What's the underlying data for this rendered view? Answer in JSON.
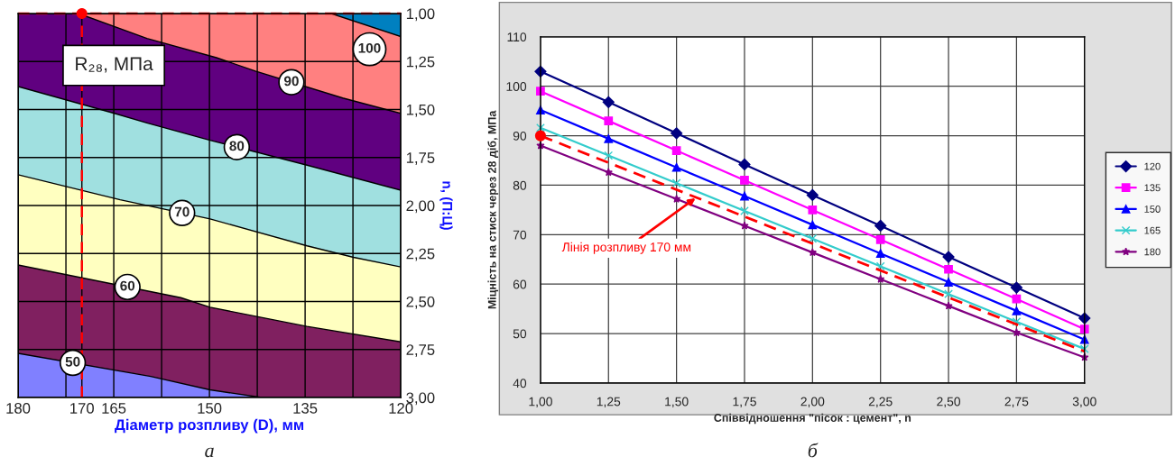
{
  "chart_data": [
    {
      "type": "area",
      "xlabel": "Діаметр розпливу (D), мм",
      "ylabel": "n, (П:Ц)",
      "subtitle": "а",
      "xlim": [
        180,
        120
      ],
      "ylim": [
        3.0,
        1.0
      ],
      "xticks": [
        180,
        {
          "value": 172.5,
          "label": null
        },
        {
          "value": 170,
          "label": "170"
        },
        165,
        {
          "value": 157.5,
          "label": null
        },
        150,
        {
          "value": 142.5,
          "label": null
        },
        135,
        {
          "value": 127.5,
          "label": null
        },
        120
      ],
      "yticks": [
        {
          "value": 1.0,
          "label": "1,00"
        },
        {
          "value": 1.25,
          "label": "1,25"
        },
        {
          "value": 1.5,
          "label": "1,50"
        },
        {
          "value": 1.75,
          "label": "1,75"
        },
        {
          "value": 2.0,
          "label": "2,00"
        },
        {
          "value": 2.25,
          "label": "2,25"
        },
        {
          "value": 2.5,
          "label": "2,50"
        },
        {
          "value": 2.75,
          "label": "2,75"
        },
        {
          "value": 3.0,
          "label": "3,00"
        }
      ],
      "grid": true,
      "annotations": [
        "R₂₈, МПа"
      ],
      "ref_lines": [
        {
          "axis": "x",
          "value": 170,
          "color": "#ff0000",
          "line_style": "dashed"
        },
        {
          "axis": "y",
          "value": 1.0,
          "color": "#ff0000",
          "line_style": "dashed"
        }
      ],
      "series": [
        {
          "color": "#8080ff",
          "x": [
            180,
            141.8
          ],
          "values": [
            3.0,
            3.0
          ]
        },
        {
          "name": "50",
          "color": "#802060",
          "x": [
            180,
            159.2,
            149.9,
            141.8,
            120
          ],
          "values": [
            2.77,
            2.89,
            2.96,
            3.0,
            3.0
          ]
        },
        {
          "name": "60",
          "color": "#ffffc0",
          "x": [
            180,
            154.5,
            149.9,
            134.7,
            120
          ],
          "values": [
            2.31,
            2.48,
            2.53,
            2.63,
            2.71
          ]
        },
        {
          "name": "70",
          "color": "#a0e0e0",
          "x": [
            180,
            164,
            149.9,
            134.7,
            127.4,
            120
          ],
          "values": [
            1.84,
            1.97,
            2.07,
            2.21,
            2.27,
            2.32
          ]
        },
        {
          "name": "80",
          "color": "#600080",
          "x": [
            180,
            164.9,
            159.8,
            149.9,
            134.7,
            120
          ],
          "values": [
            1.38,
            1.52,
            1.57,
            1.66,
            1.79,
            1.92
          ]
        },
        {
          "name": "90",
          "color": "#ff8080",
          "x": [
            170.5,
            159.8,
            148.9,
            142.8,
            129.1,
            120
          ],
          "values": [
            1.0,
            1.13,
            1.23,
            1.3,
            1.44,
            1.52
          ]
        },
        {
          "name": "100",
          "color": "#0080c0",
          "x": [
            130.9,
            120
          ],
          "values": [
            1.0,
            1.12
          ]
        },
        {
          "type": "scatter",
          "color": "#ff0000",
          "x": [
            170
          ],
          "values": [
            1.0
          ],
          "marker": "circle"
        }
      ]
    },
    {
      "type": "line",
      "xlabel": "Співвідношення \"пісок : цемент\", n",
      "ylabel": "Міцність на стиск через 28 діб, МПа",
      "subtitle": "б",
      "x": [
        1.0,
        1.25,
        1.5,
        1.75,
        2.0,
        2.25,
        2.5,
        2.75,
        3.0
      ],
      "xlim": [
        1.0,
        3.0
      ],
      "ylim": [
        40,
        110
      ],
      "xticks": [
        {
          "value": 1.0,
          "label": "1,00"
        },
        {
          "value": 1.25,
          "label": "1,25"
        },
        {
          "value": 1.5,
          "label": "1,50"
        },
        {
          "value": 1.75,
          "label": "1,75"
        },
        {
          "value": 2.0,
          "label": "2,00"
        },
        {
          "value": 2.25,
          "label": "2,25"
        },
        {
          "value": 2.5,
          "label": "2,50"
        },
        {
          "value": 2.75,
          "label": "2,75"
        },
        {
          "value": 3.0,
          "label": "3,00"
        }
      ],
      "yticks": [
        40,
        50,
        60,
        70,
        80,
        90,
        100,
        110
      ],
      "grid": true,
      "legend": "right",
      "annotations": [
        {
          "text": "Лінія розпливу 170 мм",
          "x": 1.57,
          "y": 77.4
        }
      ],
      "series": [
        {
          "name": "120",
          "color": "#000080",
          "marker": "diamond",
          "values": [
            103,
            96.8,
            90.5,
            84.2,
            78,
            71.8,
            65.5,
            59.3,
            53.1
          ]
        },
        {
          "name": "135",
          "color": "#ff00ff",
          "marker": "square",
          "values": [
            99,
            93,
            87,
            81,
            75,
            69,
            63,
            57,
            50.9
          ]
        },
        {
          "name": "150",
          "color": "#0000ff",
          "marker": "triangle",
          "values": [
            95.2,
            89.4,
            83.6,
            77.8,
            72,
            66.2,
            60.4,
            54.6,
            48.8
          ]
        },
        {
          "name": "165",
          "color": "#33cccc",
          "marker": "cross",
          "values": [
            91.6,
            86,
            80.4,
            74.8,
            69.2,
            63.6,
            58,
            52.4,
            46.9
          ]
        },
        {
          "name": "180",
          "color": "#800080",
          "marker": "star",
          "values": [
            88,
            82.6,
            77.2,
            71.8,
            66.4,
            61,
            55.6,
            50.2,
            45.2
          ]
        },
        {
          "color": "#ff0000",
          "x": [
            1.0,
            3.0
          ],
          "values": [
            90,
            46.4
          ],
          "line_style": "dashed"
        },
        {
          "type": "scatter",
          "color": "#ff0000",
          "x": [
            1.0
          ],
          "values": [
            90
          ],
          "marker": "circle"
        }
      ]
    }
  ]
}
